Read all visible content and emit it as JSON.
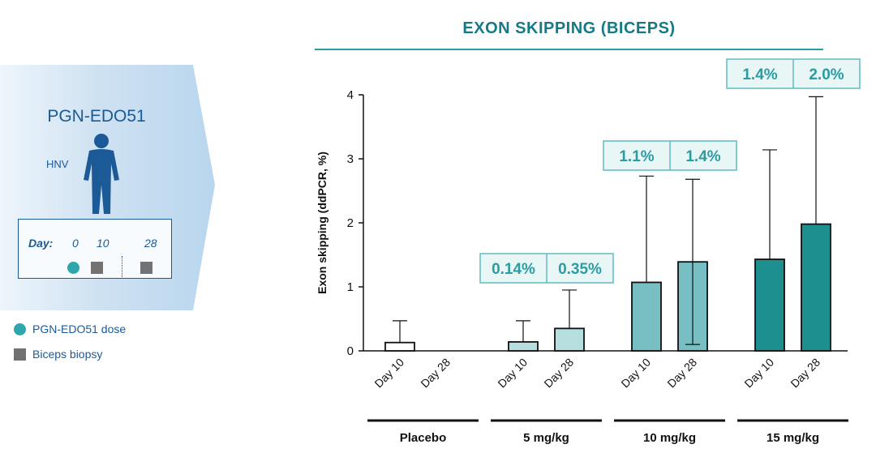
{
  "left_panel": {
    "drug": "PGN-EDO51",
    "subject": "HNV",
    "schedule": {
      "day_label": "Day:",
      "days": [
        "0",
        "10",
        "28"
      ]
    },
    "legend": [
      {
        "label": "PGN-EDO51 dose",
        "color": "#2fa6ad",
        "shape": "circle"
      },
      {
        "label": "Biceps biopsy",
        "color": "#727272",
        "shape": "square"
      }
    ]
  },
  "chart_data": {
    "type": "bar",
    "title": "EXON SKIPPING (BICEPS)",
    "ylabel": "Exon skipping (ddPCR, %)",
    "xlabel": "",
    "ylim": [
      0,
      4
    ],
    "yticks": [
      0,
      1,
      2,
      3,
      4
    ],
    "groups": [
      {
        "name": "Placebo",
        "fill": "#ffffff",
        "bars": [
          {
            "label": "Day 10",
            "value": 0.13,
            "err_upper": 0.47
          },
          {
            "label": "Day 28",
            "value": 0.0,
            "err_upper": null
          }
        ],
        "annotations": []
      },
      {
        "name": "5 mg/kg",
        "fill": "#b8dfe0",
        "bars": [
          {
            "label": "Day 10",
            "value": 0.14,
            "err_upper": 0.47
          },
          {
            "label": "Day 28",
            "value": 0.35,
            "err_upper": 0.95
          }
        ],
        "annotations": [
          "0.14%",
          "0.35%"
        ]
      },
      {
        "name": "10 mg/kg",
        "fill": "#78bfc4",
        "bars": [
          {
            "label": "Day 10",
            "value": 1.07,
            "err_upper": 2.73
          },
          {
            "label": "Day 28",
            "value": 1.39,
            "err_upper": 2.68,
            "err_lower": 0.1
          }
        ],
        "annotations": [
          "1.1%",
          "1.4%"
        ]
      },
      {
        "name": "15 mg/kg",
        "fill": "#1c8f8e",
        "bars": [
          {
            "label": "Day 10",
            "value": 1.43,
            "err_upper": 3.14
          },
          {
            "label": "Day 28",
            "value": 1.98,
            "err_upper": 3.97
          }
        ],
        "annotations": [
          "1.4%",
          "2.0%"
        ]
      }
    ],
    "colors": {
      "title": "#157a85",
      "annotation_text": "#2a9ca3",
      "annotation_border": "#5fbcc0",
      "annotation_fill": "#e9f6f6"
    }
  }
}
